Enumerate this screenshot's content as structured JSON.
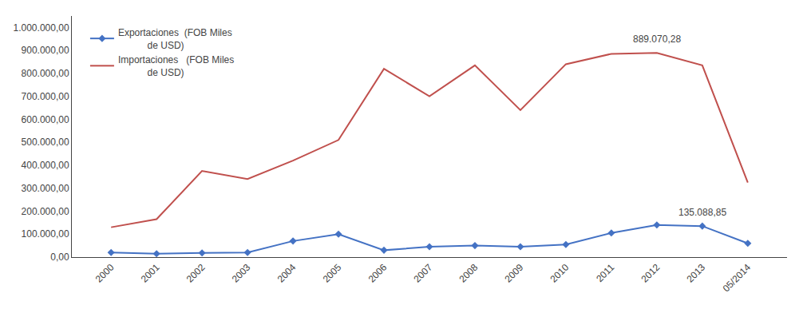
{
  "chart_data": {
    "type": "line",
    "categories": [
      "2000",
      "2001",
      "2002",
      "2003",
      "2004",
      "2005",
      "2006",
      "2007",
      "2008",
      "2009",
      "2010",
      "2011",
      "2012",
      "2013",
      "05/2014"
    ],
    "series": [
      {
        "name": "Exportaciones  (FOB Miles\n           de USD)",
        "color": "#4472C4",
        "marker": "diamond",
        "line_style": "solid",
        "values": [
          20000,
          15000,
          18000,
          20000,
          70000,
          100000,
          30000,
          45000,
          50000,
          45000,
          55000,
          105000,
          140000,
          135088.85,
          60000
        ]
      },
      {
        "name": "Importaciones   (FOB Miles\n           de USD)",
        "color": "#C0504D",
        "marker": "none",
        "line_style": "solid",
        "values": [
          130000,
          165000,
          375000,
          340000,
          420000,
          510000,
          820000,
          700000,
          835000,
          640000,
          840000,
          885000,
          889070.28,
          835000,
          325000
        ]
      }
    ],
    "annotations": [
      {
        "text": "889.070,28",
        "x": "2012",
        "y": 889070.28
      },
      {
        "text": "135.088,85",
        "x": "2013",
        "y": 135088.85
      }
    ],
    "ylim": [
      0,
      1050000
    ],
    "yticks": [
      {
        "value": 0,
        "label": "0,00"
      },
      {
        "value": 100000,
        "label": "100.000,00"
      },
      {
        "value": 200000,
        "label": "200.000,00"
      },
      {
        "value": 300000,
        "label": "300.000,00"
      },
      {
        "value": 400000,
        "label": "400.000,00"
      },
      {
        "value": 500000,
        "label": "500.000,00"
      },
      {
        "value": 600000,
        "label": "600.000,00"
      },
      {
        "value": 700000,
        "label": "700.000,00"
      },
      {
        "value": 800000,
        "label": "800.000,00"
      },
      {
        "value": 900000,
        "label": "900.000,00"
      },
      {
        "value": 1000000,
        "label": "1.000.000,00"
      }
    ],
    "grid": false,
    "legend": "upper left"
  }
}
